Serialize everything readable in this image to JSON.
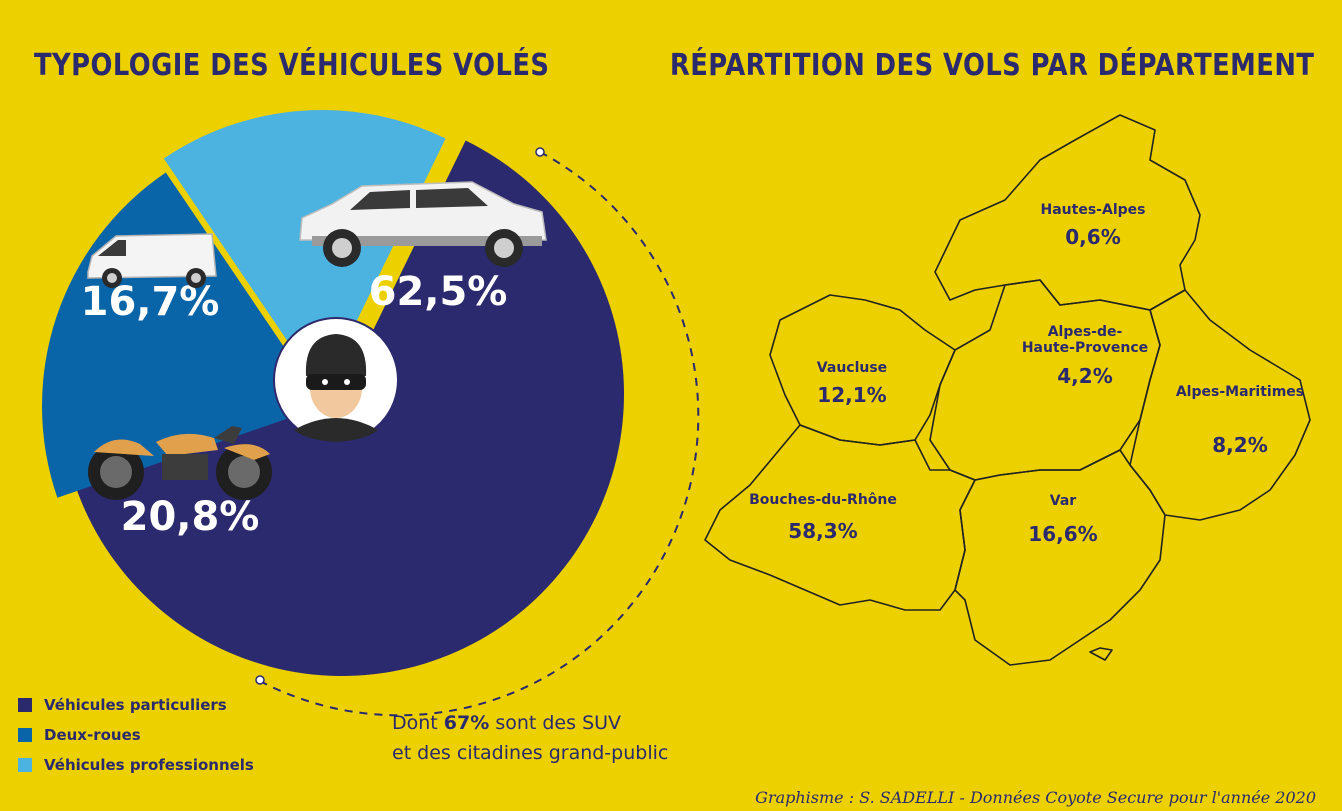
{
  "colors": {
    "background": "#ecd000",
    "navy": "#2b2a6e",
    "blue": "#0a64a8",
    "light_blue": "#4cb3e0"
  },
  "chart_data": [
    {
      "type": "pie",
      "title": "TYPOLOGIE DES VÉHICULES VOLÉS",
      "slices": [
        {
          "name": "Véhicules particuliers",
          "value": 62.5,
          "label": "62,5%",
          "color": "#2b2a6e"
        },
        {
          "name": "Deux-roues",
          "value": 20.8,
          "label": "20,8%",
          "color": "#0a64a8"
        },
        {
          "name": "Véhicules professionnels",
          "value": 16.7,
          "label": "16,7%",
          "color": "#4cb3e0"
        }
      ],
      "legend_position": "bottom-left",
      "annotation": {
        "prefix": "Dont ",
        "highlight": "67%",
        "line1_suffix": " sont des SUV",
        "line2": "et des citadines grand-public"
      }
    },
    {
      "type": "map",
      "title": "RÉPARTITION DES VOLS PAR DÉPARTEMENT",
      "regions": [
        {
          "name": "Hautes-Alpes",
          "value": 0.6,
          "label": "0,6%"
        },
        {
          "name": "Alpes-de-Haute-Provence",
          "name_lines": [
            "Alpes-de-",
            "Haute-Provence"
          ],
          "value": 4.2,
          "label": "4,2%"
        },
        {
          "name": "Vaucluse",
          "value": 12.1,
          "label": "12,1%"
        },
        {
          "name": "Alpes-Maritimes",
          "value": 8.2,
          "label": "8,2%"
        },
        {
          "name": "Bouches-du-Rhône",
          "value": 58.3,
          "label": "58,3%"
        },
        {
          "name": "Var",
          "value": 16.6,
          "label": "16,6%"
        }
      ]
    }
  ],
  "credit": "Graphisme : S. SADELLI - Données Coyote Secure pour l'année 2020",
  "icons": [
    "suv-car-icon",
    "van-icon",
    "motorcycle-icon",
    "thief-icon"
  ]
}
